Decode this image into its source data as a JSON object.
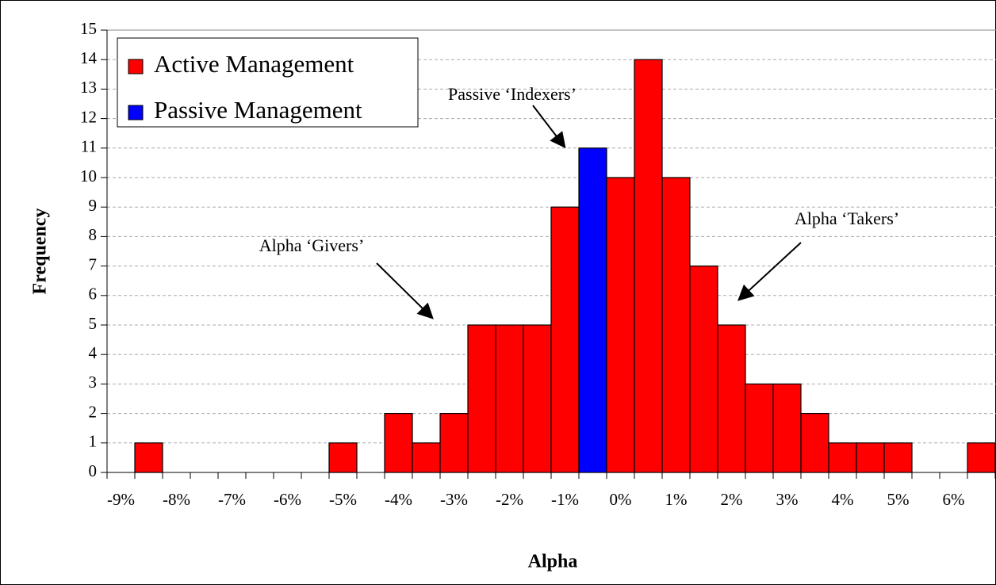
{
  "chart_data": {
    "type": "bar",
    "x_label": "Alpha",
    "y_label": "Frequency",
    "categories": [
      "-9%",
      null,
      "-8%",
      null,
      "-7%",
      null,
      "-6%",
      null,
      "-5%",
      null,
      "-4%",
      null,
      "-3%",
      null,
      "-2%",
      null,
      "-1%",
      null,
      "0%",
      null,
      "1%",
      null,
      "2%",
      null,
      "3%",
      null,
      "4%",
      null,
      "5%",
      null,
      "6%",
      null
    ],
    "series": [
      {
        "name": "Active Management",
        "color": "#ff0000",
        "values": [
          0,
          1,
          0,
          0,
          0,
          0,
          0,
          0,
          1,
          0,
          2,
          1,
          2,
          5,
          5,
          5,
          9,
          null,
          10,
          14,
          10,
          7,
          5,
          3,
          3,
          2,
          1,
          1,
          1,
          0,
          0,
          1
        ]
      },
      {
        "name": "Passive Management",
        "color": "#0000ff",
        "values": [
          null,
          null,
          null,
          null,
          null,
          null,
          null,
          null,
          null,
          null,
          null,
          null,
          null,
          null,
          null,
          null,
          null,
          11,
          null,
          null,
          null,
          null,
          null,
          null,
          null,
          null,
          null,
          null,
          null,
          null,
          null,
          null
        ]
      }
    ],
    "ylim": [
      0,
      15
    ],
    "yticks": [
      0,
      1,
      2,
      3,
      4,
      5,
      6,
      7,
      8,
      9,
      10,
      11,
      12,
      13,
      14,
      15
    ],
    "grid": true,
    "legend": "top-left",
    "annotations": [
      "Passive ‘Indexers’",
      "Alpha ‘Givers’",
      "Alpha ‘Takers’"
    ]
  }
}
